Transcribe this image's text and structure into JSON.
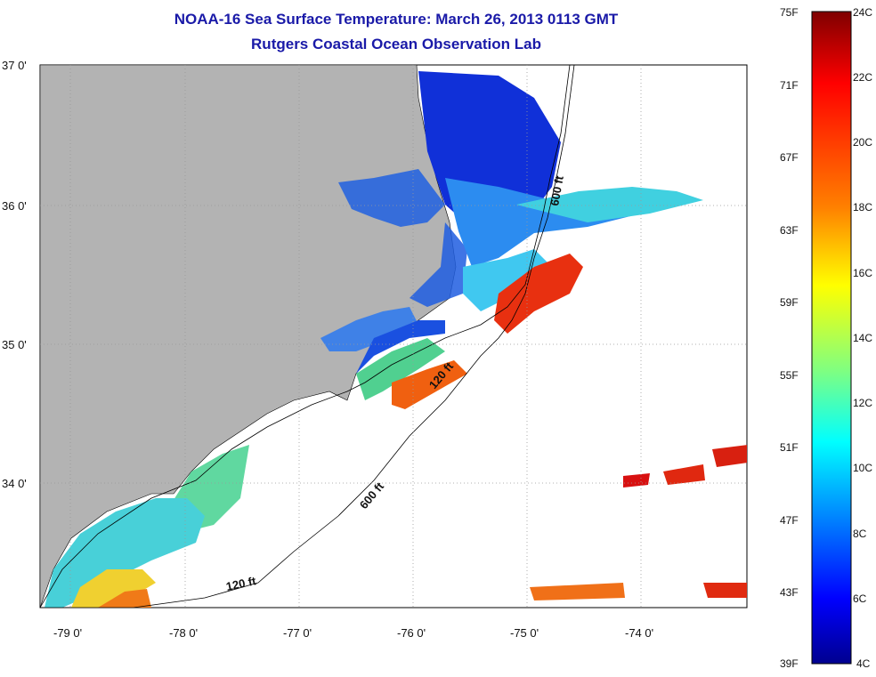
{
  "header": {
    "title": "NOAA-16 Sea Surface Temperature:  March 26, 2013 0113 GMT",
    "subtitle": "Rutgers Coastal Ocean Observation Lab"
  },
  "map": {
    "lat_labels": [
      "37 0'",
      "36 0'",
      "35 0'",
      "34 0'"
    ],
    "lon_labels": [
      "-79 0'",
      "-78 0'",
      "-77 0'",
      "-76 0'",
      "-75 0'",
      "-74 0'"
    ],
    "contours": {
      "c120_south": "120 ft",
      "c600_south": "600 ft",
      "c120_north": "120 ft",
      "c600_north": "600 ft"
    },
    "colors": {
      "land": "#b3b3b3",
      "ocean_nodata": "#ffffff"
    }
  },
  "colorbar": {
    "f_labels": [
      "75F",
      "71F",
      "67F",
      "63F",
      "59F",
      "55F",
      "51F",
      "47F",
      "43F",
      "39F"
    ],
    "c_labels": [
      "24C",
      "22C",
      "20C",
      "18C",
      "16C",
      "14C",
      "12C",
      "10C",
      "8C",
      "6C",
      "4C"
    ],
    "gradient": [
      "#7f0000",
      "#ff0000",
      "#ff8000",
      "#ffff00",
      "#80ff80",
      "#00ffff",
      "#0080ff",
      "#0000ff",
      "#00008f"
    ]
  }
}
